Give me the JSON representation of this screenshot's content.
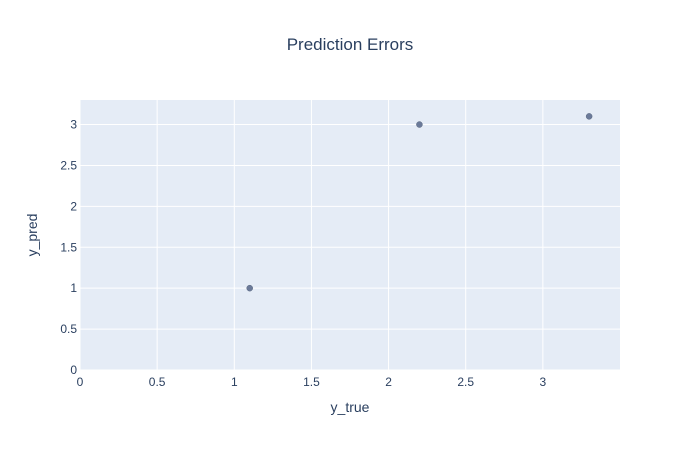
{
  "chart_data": {
    "type": "scatter",
    "title": "Prediction Errors",
    "xlabel": "y_true",
    "ylabel": "y_pred",
    "xlim": [
      0,
      3.5
    ],
    "ylim": [
      0,
      3.3
    ],
    "xticks": [
      0,
      0.5,
      1,
      1.5,
      2,
      2.5,
      3
    ],
    "xtick_labels": [
      "0",
      "0.5",
      "1",
      "1.5",
      "2",
      "2.5",
      "3"
    ],
    "yticks": [
      0,
      0.5,
      1,
      1.5,
      2,
      2.5,
      3
    ],
    "ytick_labels": [
      "0",
      "0.5",
      "1",
      "1.5",
      "2",
      "2.5",
      "3"
    ],
    "grid": true,
    "x": [
      1.1,
      2.2,
      3.3
    ],
    "y": [
      1.0,
      3.0,
      3.1
    ],
    "marker_color": "#6b7a99",
    "plot_background": "#e5ecf6",
    "grid_color": "#ffffff",
    "text_color": "#2a3f5f"
  }
}
